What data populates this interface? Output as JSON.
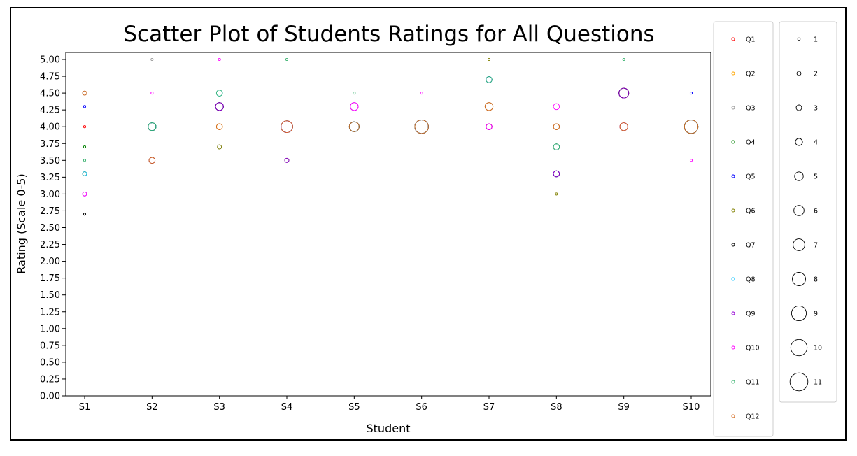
{
  "chart_data": {
    "type": "scatter",
    "title": "Scatter Plot of Students Ratings for All Questions",
    "xlabel": "Student",
    "ylabel": "Rating (Scale 0-5)",
    "categories": [
      "S1",
      "S2",
      "S3",
      "S4",
      "S5",
      "S6",
      "S7",
      "S8",
      "S9",
      "S10"
    ],
    "ylim": [
      0,
      5.0
    ],
    "yticks": [
      "0.00",
      "0.25",
      "0.50",
      "0.75",
      "1.00",
      "1.25",
      "1.50",
      "1.75",
      "2.00",
      "2.25",
      "2.50",
      "2.75",
      "3.00",
      "3.25",
      "3.50",
      "3.75",
      "4.00",
      "4.25",
      "4.50",
      "4.75",
      "5.00"
    ],
    "grid": false,
    "marker_size_meaning": "count of identical ratings",
    "series": [
      {
        "name": "Q1",
        "color": "#ff0000",
        "points": [
          [
            1,
            4.0,
            1
          ],
          [
            2,
            4.0,
            4
          ],
          [
            3,
            4.3,
            4
          ],
          [
            4,
            4.0,
            6
          ],
          [
            5,
            4.0,
            5
          ],
          [
            6,
            4.0,
            7
          ],
          [
            7,
            4.0,
            3
          ],
          [
            8,
            3.7,
            3
          ],
          [
            9,
            4.5,
            5
          ],
          [
            10,
            4.0,
            7
          ]
        ]
      },
      {
        "name": "Q2",
        "color": "#ffa500",
        "points": [
          [
            1,
            3.3,
            2
          ],
          [
            2,
            3.5,
            3
          ],
          [
            3,
            4.0,
            3
          ],
          [
            4,
            4.0,
            6
          ],
          [
            5,
            4.0,
            5
          ],
          [
            6,
            4.0,
            7
          ],
          [
            7,
            4.3,
            4
          ],
          [
            8,
            4.0,
            3
          ],
          [
            9,
            4.0,
            4
          ],
          [
            10,
            4.0,
            7
          ]
        ]
      },
      {
        "name": "Q3",
        "color": "#999999",
        "points": [
          [
            1,
            4.5,
            2
          ],
          [
            2,
            5.0,
            1
          ],
          [
            3,
            3.7,
            2
          ],
          [
            4,
            4.0,
            6
          ],
          [
            5,
            4.0,
            5
          ],
          [
            6,
            4.0,
            7
          ],
          [
            7,
            4.3,
            4
          ],
          [
            8,
            4.0,
            3
          ],
          [
            9,
            4.5,
            5
          ],
          [
            10,
            4.0,
            7
          ]
        ]
      },
      {
        "name": "Q4",
        "color": "#008000",
        "points": [
          [
            1,
            3.7,
            1
          ],
          [
            2,
            4.0,
            4
          ],
          [
            3,
            4.3,
            4
          ],
          [
            4,
            4.0,
            6
          ],
          [
            5,
            4.0,
            5
          ],
          [
            6,
            4.0,
            7
          ],
          [
            7,
            4.7,
            3
          ],
          [
            8,
            3.7,
            3
          ],
          [
            9,
            4.5,
            5
          ],
          [
            10,
            4.0,
            7
          ]
        ]
      },
      {
        "name": "Q5",
        "color": "#0000ff",
        "points": [
          [
            1,
            4.3,
            1
          ],
          [
            2,
            4.0,
            4
          ],
          [
            3,
            4.3,
            4
          ],
          [
            4,
            4.0,
            6
          ],
          [
            5,
            4.0,
            5
          ],
          [
            6,
            4.0,
            7
          ],
          [
            7,
            4.7,
            3
          ],
          [
            8,
            3.3,
            3
          ],
          [
            9,
            4.5,
            5
          ],
          [
            10,
            4.5,
            1
          ]
        ]
      },
      {
        "name": "Q6",
        "color": "#808000",
        "points": [
          [
            1,
            3.3,
            2
          ],
          [
            2,
            3.5,
            3
          ],
          [
            3,
            3.7,
            2
          ],
          [
            4,
            4.0,
            6
          ],
          [
            5,
            4.0,
            5
          ],
          [
            6,
            4.0,
            7
          ],
          [
            7,
            5.0,
            1
          ],
          [
            8,
            3.0,
            1
          ],
          [
            9,
            4.5,
            5
          ],
          [
            10,
            4.0,
            7
          ]
        ]
      },
      {
        "name": "Q7",
        "color": "#000000",
        "points": [
          [
            1,
            2.7,
            1
          ],
          [
            2,
            4.0,
            4
          ],
          [
            3,
            4.3,
            4
          ],
          [
            4,
            3.5,
            2
          ],
          [
            5,
            4.0,
            5
          ],
          [
            6,
            4.0,
            7
          ],
          [
            7,
            4.0,
            3
          ],
          [
            8,
            3.3,
            3
          ],
          [
            9,
            4.5,
            5
          ],
          [
            10,
            4.0,
            7
          ]
        ]
      },
      {
        "name": "Q8",
        "color": "#00bfff",
        "points": [
          [
            1,
            3.3,
            2
          ],
          [
            2,
            4.0,
            4
          ],
          [
            3,
            4.5,
            3
          ],
          [
            4,
            4.0,
            6
          ],
          [
            5,
            4.0,
            5
          ],
          [
            6,
            4.0,
            7
          ],
          [
            7,
            4.7,
            3
          ],
          [
            8,
            3.7,
            3
          ],
          [
            9,
            4.0,
            4
          ],
          [
            10,
            4.0,
            7
          ]
        ]
      },
      {
        "name": "Q9",
        "color": "#9400d3",
        "points": [
          [
            1,
            3.0,
            2
          ],
          [
            2,
            3.5,
            3
          ],
          [
            3,
            4.3,
            4
          ],
          [
            4,
            3.5,
            2
          ],
          [
            5,
            4.3,
            4
          ],
          [
            6,
            4.0,
            7
          ],
          [
            7,
            4.0,
            3
          ],
          [
            8,
            3.3,
            3
          ],
          [
            9,
            4.5,
            5
          ],
          [
            10,
            4.0,
            7
          ]
        ]
      },
      {
        "name": "Q10",
        "color": "#ff00ff",
        "points": [
          [
            1,
            3.0,
            2
          ],
          [
            2,
            4.5,
            1
          ],
          [
            3,
            5.0,
            1
          ],
          [
            4,
            4.0,
            6
          ],
          [
            5,
            4.3,
            4
          ],
          [
            6,
            4.5,
            1
          ],
          [
            7,
            4.0,
            3
          ],
          [
            8,
            4.3,
            3
          ],
          [
            9,
            4.0,
            4
          ],
          [
            10,
            3.5,
            1
          ]
        ]
      },
      {
        "name": "Q11",
        "color": "#3cb371",
        "points": [
          [
            1,
            3.5,
            1
          ],
          [
            2,
            4.0,
            4
          ],
          [
            3,
            4.5,
            3
          ],
          [
            4,
            5.0,
            1
          ],
          [
            5,
            4.5,
            1
          ],
          [
            6,
            4.0,
            7
          ],
          [
            7,
            4.7,
            3
          ],
          [
            8,
            3.7,
            3
          ],
          [
            9,
            5.0,
            1
          ],
          [
            10,
            4.0,
            7
          ]
        ]
      },
      {
        "name": "Q12",
        "color": "#d2691e",
        "points": [
          [
            1,
            4.5,
            2
          ],
          [
            2,
            3.5,
            3
          ],
          [
            3,
            4.0,
            3
          ],
          [
            4,
            4.0,
            6
          ],
          [
            5,
            4.0,
            5
          ],
          [
            6,
            4.0,
            7
          ],
          [
            7,
            4.3,
            4
          ],
          [
            8,
            4.0,
            3
          ],
          [
            9,
            4.0,
            4
          ],
          [
            10,
            4.0,
            7
          ]
        ]
      }
    ],
    "size_legend": [
      "1",
      "2",
      "3",
      "4",
      "5",
      "6",
      "7",
      "8",
      "9",
      "10",
      "11"
    ]
  }
}
